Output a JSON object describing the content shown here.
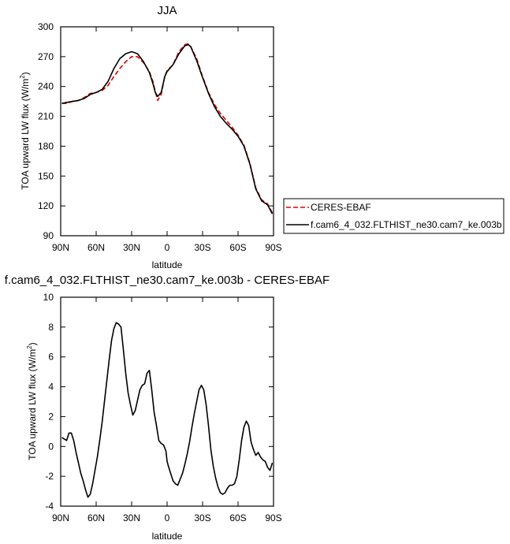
{
  "chart_data": [
    {
      "type": "line",
      "title": "JJA",
      "xlabel": "latitude",
      "ylabel": "TOA upward LW flux (W/m²)",
      "ylabel_parts": {
        "text": "TOA upward LW flux (W/m",
        "sup": "2",
        "close": ")"
      },
      "xlim": [
        90,
        -90
      ],
      "ylim": [
        90,
        300
      ],
      "x_ticks": [
        90,
        60,
        30,
        0,
        -30,
        -60,
        -90
      ],
      "x_tick_labels": [
        "90N",
        "60N",
        "30N",
        "0",
        "30S",
        "60S",
        "90S"
      ],
      "y_ticks": [
        90,
        120,
        150,
        180,
        210,
        240,
        270,
        300
      ],
      "y_tick_labels": [
        "90",
        "120",
        "150",
        "180",
        "210",
        "240",
        "270",
        "300"
      ],
      "legend_position": "right",
      "series": [
        {
          "name": "CERES-EBAF",
          "color": "#dd0000",
          "dash": "dashed",
          "x": [
            89,
            85,
            80,
            75,
            70,
            65,
            60,
            55,
            50,
            45,
            40,
            35,
            30,
            25,
            20,
            15,
            12,
            10,
            8,
            5,
            2,
            0,
            -5,
            -10,
            -15,
            -18,
            -20,
            -25,
            -30,
            -35,
            -40,
            -45,
            -50,
            -55,
            -60,
            -65,
            -70,
            -75,
            -80,
            -85,
            -89
          ],
          "y": [
            223,
            223,
            225,
            226,
            229,
            233,
            234,
            236,
            241,
            250,
            258,
            265,
            270,
            270,
            264,
            255,
            245,
            235,
            226,
            232,
            250,
            256,
            262,
            275,
            282,
            283,
            280,
            268,
            250,
            234,
            222,
            213,
            206,
            199,
            191,
            181,
            163,
            138,
            126,
            122,
            113
          ]
        },
        {
          "name": "f.cam6_4_032.FLTHIST_ne30.cam7_ke.003b",
          "color": "#000000",
          "dash": "solid",
          "x": [
            89,
            85,
            80,
            75,
            70,
            65,
            60,
            55,
            50,
            45,
            40,
            35,
            30,
            25,
            20,
            15,
            12,
            10,
            8,
            5,
            2,
            0,
            -5,
            -10,
            -15,
            -18,
            -20,
            -25,
            -30,
            -35,
            -40,
            -45,
            -50,
            -55,
            -60,
            -65,
            -70,
            -75,
            -80,
            -85,
            -89
          ],
          "y": [
            223,
            224,
            225,
            226,
            228,
            232,
            234,
            237,
            245,
            258,
            268,
            273,
            275,
            273,
            265,
            254,
            243,
            234,
            230,
            234,
            250,
            255,
            262,
            273,
            281,
            282,
            280,
            266,
            249,
            233,
            220,
            210,
            203,
            197,
            190,
            180,
            162,
            137,
            125,
            121,
            112
          ]
        }
      ]
    },
    {
      "type": "line",
      "title": "f.cam6_4_032.FLTHIST_ne30.cam7_ke.003b - CERES-EBAF",
      "xlabel": "latitude",
      "ylabel": "TOA upward LW flux (W/m²)",
      "ylabel_parts": {
        "text": "TOA upward LW flux (W/m",
        "sup": "2",
        "close": ")"
      },
      "xlim": [
        90,
        -90
      ],
      "ylim": [
        -4,
        10
      ],
      "x_ticks": [
        90,
        60,
        30,
        0,
        -30,
        -60,
        -90
      ],
      "x_tick_labels": [
        "90N",
        "60N",
        "30N",
        "0",
        "30S",
        "60S",
        "90S"
      ],
      "y_ticks": [
        -4,
        -2,
        0,
        2,
        4,
        6,
        8,
        10
      ],
      "y_tick_labels": [
        "-4",
        "-2",
        "0",
        "2",
        "4",
        "6",
        "8",
        "10"
      ],
      "series": [
        {
          "color": "#000000",
          "dash": "solid",
          "x": [
            89,
            87,
            85,
            83,
            81,
            79,
            77,
            75,
            73,
            71,
            69,
            67,
            65,
            63,
            61,
            59,
            57,
            55,
            53,
            51,
            49,
            47,
            45,
            43,
            41,
            39,
            37,
            35,
            33,
            31,
            29,
            27,
            25,
            23,
            21,
            19,
            17,
            15,
            13,
            11,
            9,
            7,
            5,
            3,
            1,
            0,
            -1,
            -3,
            -5,
            -7,
            -9,
            -11,
            -13,
            -15,
            -17,
            -19,
            -21,
            -23,
            -25,
            -27,
            -29,
            -31,
            -33,
            -35,
            -37,
            -39,
            -41,
            -43,
            -45,
            -47,
            -49,
            -51,
            -53,
            -55,
            -57,
            -59,
            -61,
            -63,
            -65,
            -67,
            -69,
            -71,
            -73,
            -75,
            -77,
            -79,
            -81,
            -83,
            -85,
            -87,
            -89
          ],
          "y": [
            0.6,
            0.5,
            0.4,
            0.9,
            0.9,
            0.4,
            -0.4,
            -1.1,
            -1.8,
            -2.3,
            -2.9,
            -3.4,
            -3.2,
            -2.5,
            -1.6,
            -0.7,
            0.4,
            1.6,
            3.0,
            4.4,
            5.8,
            7.1,
            7.9,
            8.3,
            8.2,
            8.0,
            6.5,
            4.9,
            3.6,
            2.8,
            2.1,
            2.4,
            3.1,
            3.8,
            4.1,
            4.2,
            4.9,
            5.1,
            3.8,
            2.3,
            1.4,
            0.4,
            0.2,
            0.1,
            -0.3,
            -1.0,
            -1.3,
            -1.8,
            -2.3,
            -2.5,
            -2.6,
            -2.2,
            -1.8,
            -1.2,
            -0.5,
            0.3,
            1.3,
            2.2,
            3.0,
            3.8,
            4.1,
            3.8,
            2.8,
            1.4,
            -0.2,
            -1.3,
            -2.1,
            -2.7,
            -3.1,
            -3.2,
            -3.1,
            -2.8,
            -2.6,
            -2.6,
            -2.5,
            -2.0,
            -0.9,
            0.4,
            1.3,
            1.7,
            1.4,
            0.3,
            -0.2,
            -0.6,
            -0.4,
            -0.7,
            -0.9,
            -1.0,
            -1.4,
            -1.6,
            -1.1
          ]
        }
      ]
    }
  ]
}
